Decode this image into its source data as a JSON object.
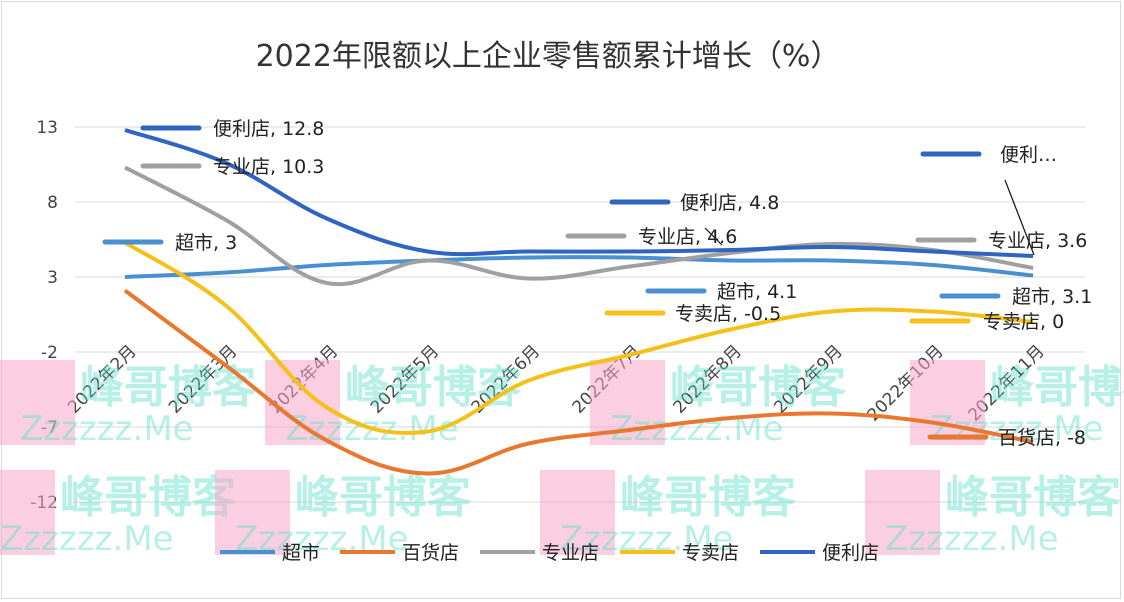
{
  "chart_data": {
    "type": "line",
    "title": "2022年限额以上企业零售额累计增长（%）",
    "categories": [
      "2022年2月",
      "2022年3月",
      "2022年4月",
      "2022年5月",
      "2022年6月",
      "2022年7月",
      "2022年8月",
      "2022年9月",
      "2022年10月",
      "2022年11月"
    ],
    "ylim": [
      -12,
      13
    ],
    "yticks": [
      "13",
      "8",
      "3",
      "-2",
      "-7",
      "-12"
    ],
    "ytick_values": [
      13,
      8,
      3,
      -2,
      -7,
      -12
    ],
    "grid": true,
    "legend_position": "bottom",
    "series": [
      {
        "name": "超市",
        "color": "#4a90d0",
        "values": [
          3.0,
          3.3,
          3.8,
          4.1,
          4.3,
          4.3,
          4.1,
          4.1,
          3.8,
          3.1
        ]
      },
      {
        "name": "百货店",
        "color": "#e8782f",
        "values": [
          2.1,
          -2.9,
          -7.9,
          -10.1,
          -8.1,
          -7.2,
          -6.4,
          -6.1,
          -6.7,
          -8.0
        ]
      },
      {
        "name": "专业店",
        "color": "#a0a0a0",
        "values": [
          10.3,
          6.8,
          2.6,
          4.1,
          2.9,
          3.7,
          4.6,
          5.2,
          4.8,
          3.6
        ]
      },
      {
        "name": "专卖店",
        "color": "#f5c118",
        "values": [
          5.3,
          1.1,
          -5.7,
          -7.3,
          -3.9,
          -2.2,
          -0.5,
          0.7,
          0.7,
          0.0
        ]
      },
      {
        "name": "便利店",
        "color": "#2f64c0",
        "values": [
          12.8,
          10.6,
          6.9,
          4.7,
          4.7,
          4.7,
          4.8,
          5.0,
          4.7,
          4.4
        ]
      }
    ],
    "data_labels": [
      {
        "series": "便利店",
        "text": "便利店, 12.8"
      },
      {
        "series": "专业店",
        "text": "专业店, 10.3"
      },
      {
        "series": "超市",
        "text": "超市, 3"
      },
      {
        "series": "便利店",
        "text": "便利店, 4.8"
      },
      {
        "series": "专业店",
        "text": "专业店, 4.6"
      },
      {
        "series": "超市",
        "text": "超市, 4.1"
      },
      {
        "series": "专卖店",
        "text": "专卖店, -0.5"
      },
      {
        "series": "便利店",
        "text": "便利…"
      },
      {
        "series": "专业店",
        "text": "专业店, 3.6"
      },
      {
        "series": "超市",
        "text": "超市, 3.1"
      },
      {
        "series": "专卖店",
        "text": "专卖店, 0"
      },
      {
        "series": "百货店",
        "text": "百货店, -8"
      }
    ]
  },
  "watermark": {
    "text": "峰哥博客",
    "sub": "Zzzzzz.Me",
    "logo": "F"
  }
}
